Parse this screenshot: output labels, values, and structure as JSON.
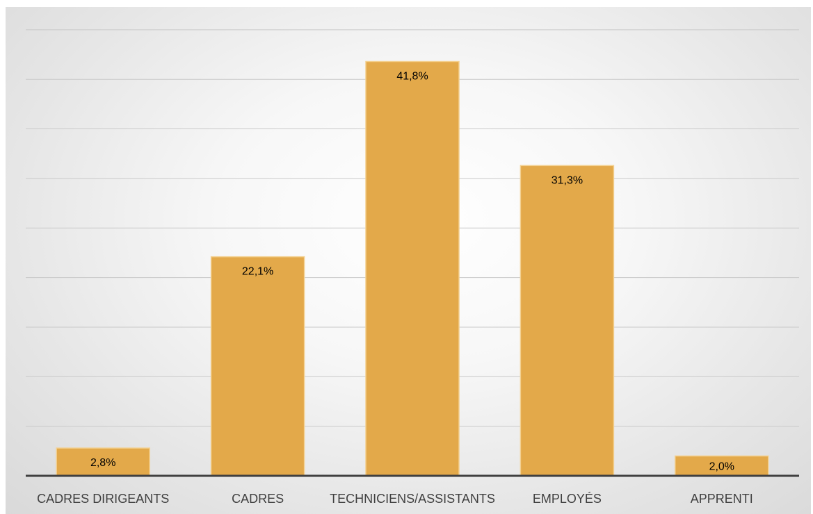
{
  "chart_data": {
    "type": "bar",
    "categories": [
      "CADRES DIRIGEANTS",
      "CADRES",
      "TECHNICIENS/ASSISTANTS",
      "EMPLOYÉS",
      "APPRENTI"
    ],
    "values": [
      2.8,
      22.1,
      41.8,
      31.3,
      2.0
    ],
    "data_labels": [
      "2,8%",
      "22,1%",
      "41,8%",
      "31,3%",
      "2,0%"
    ],
    "ylim": [
      0,
      45
    ],
    "grid": true,
    "legend": "none",
    "title": "",
    "xlabel": "",
    "ylabel": "",
    "colors": {
      "bar": "#e3a94a",
      "bar_edge": "#f3d08f",
      "axis": "#404040",
      "grid": "#c9c9c9"
    }
  }
}
